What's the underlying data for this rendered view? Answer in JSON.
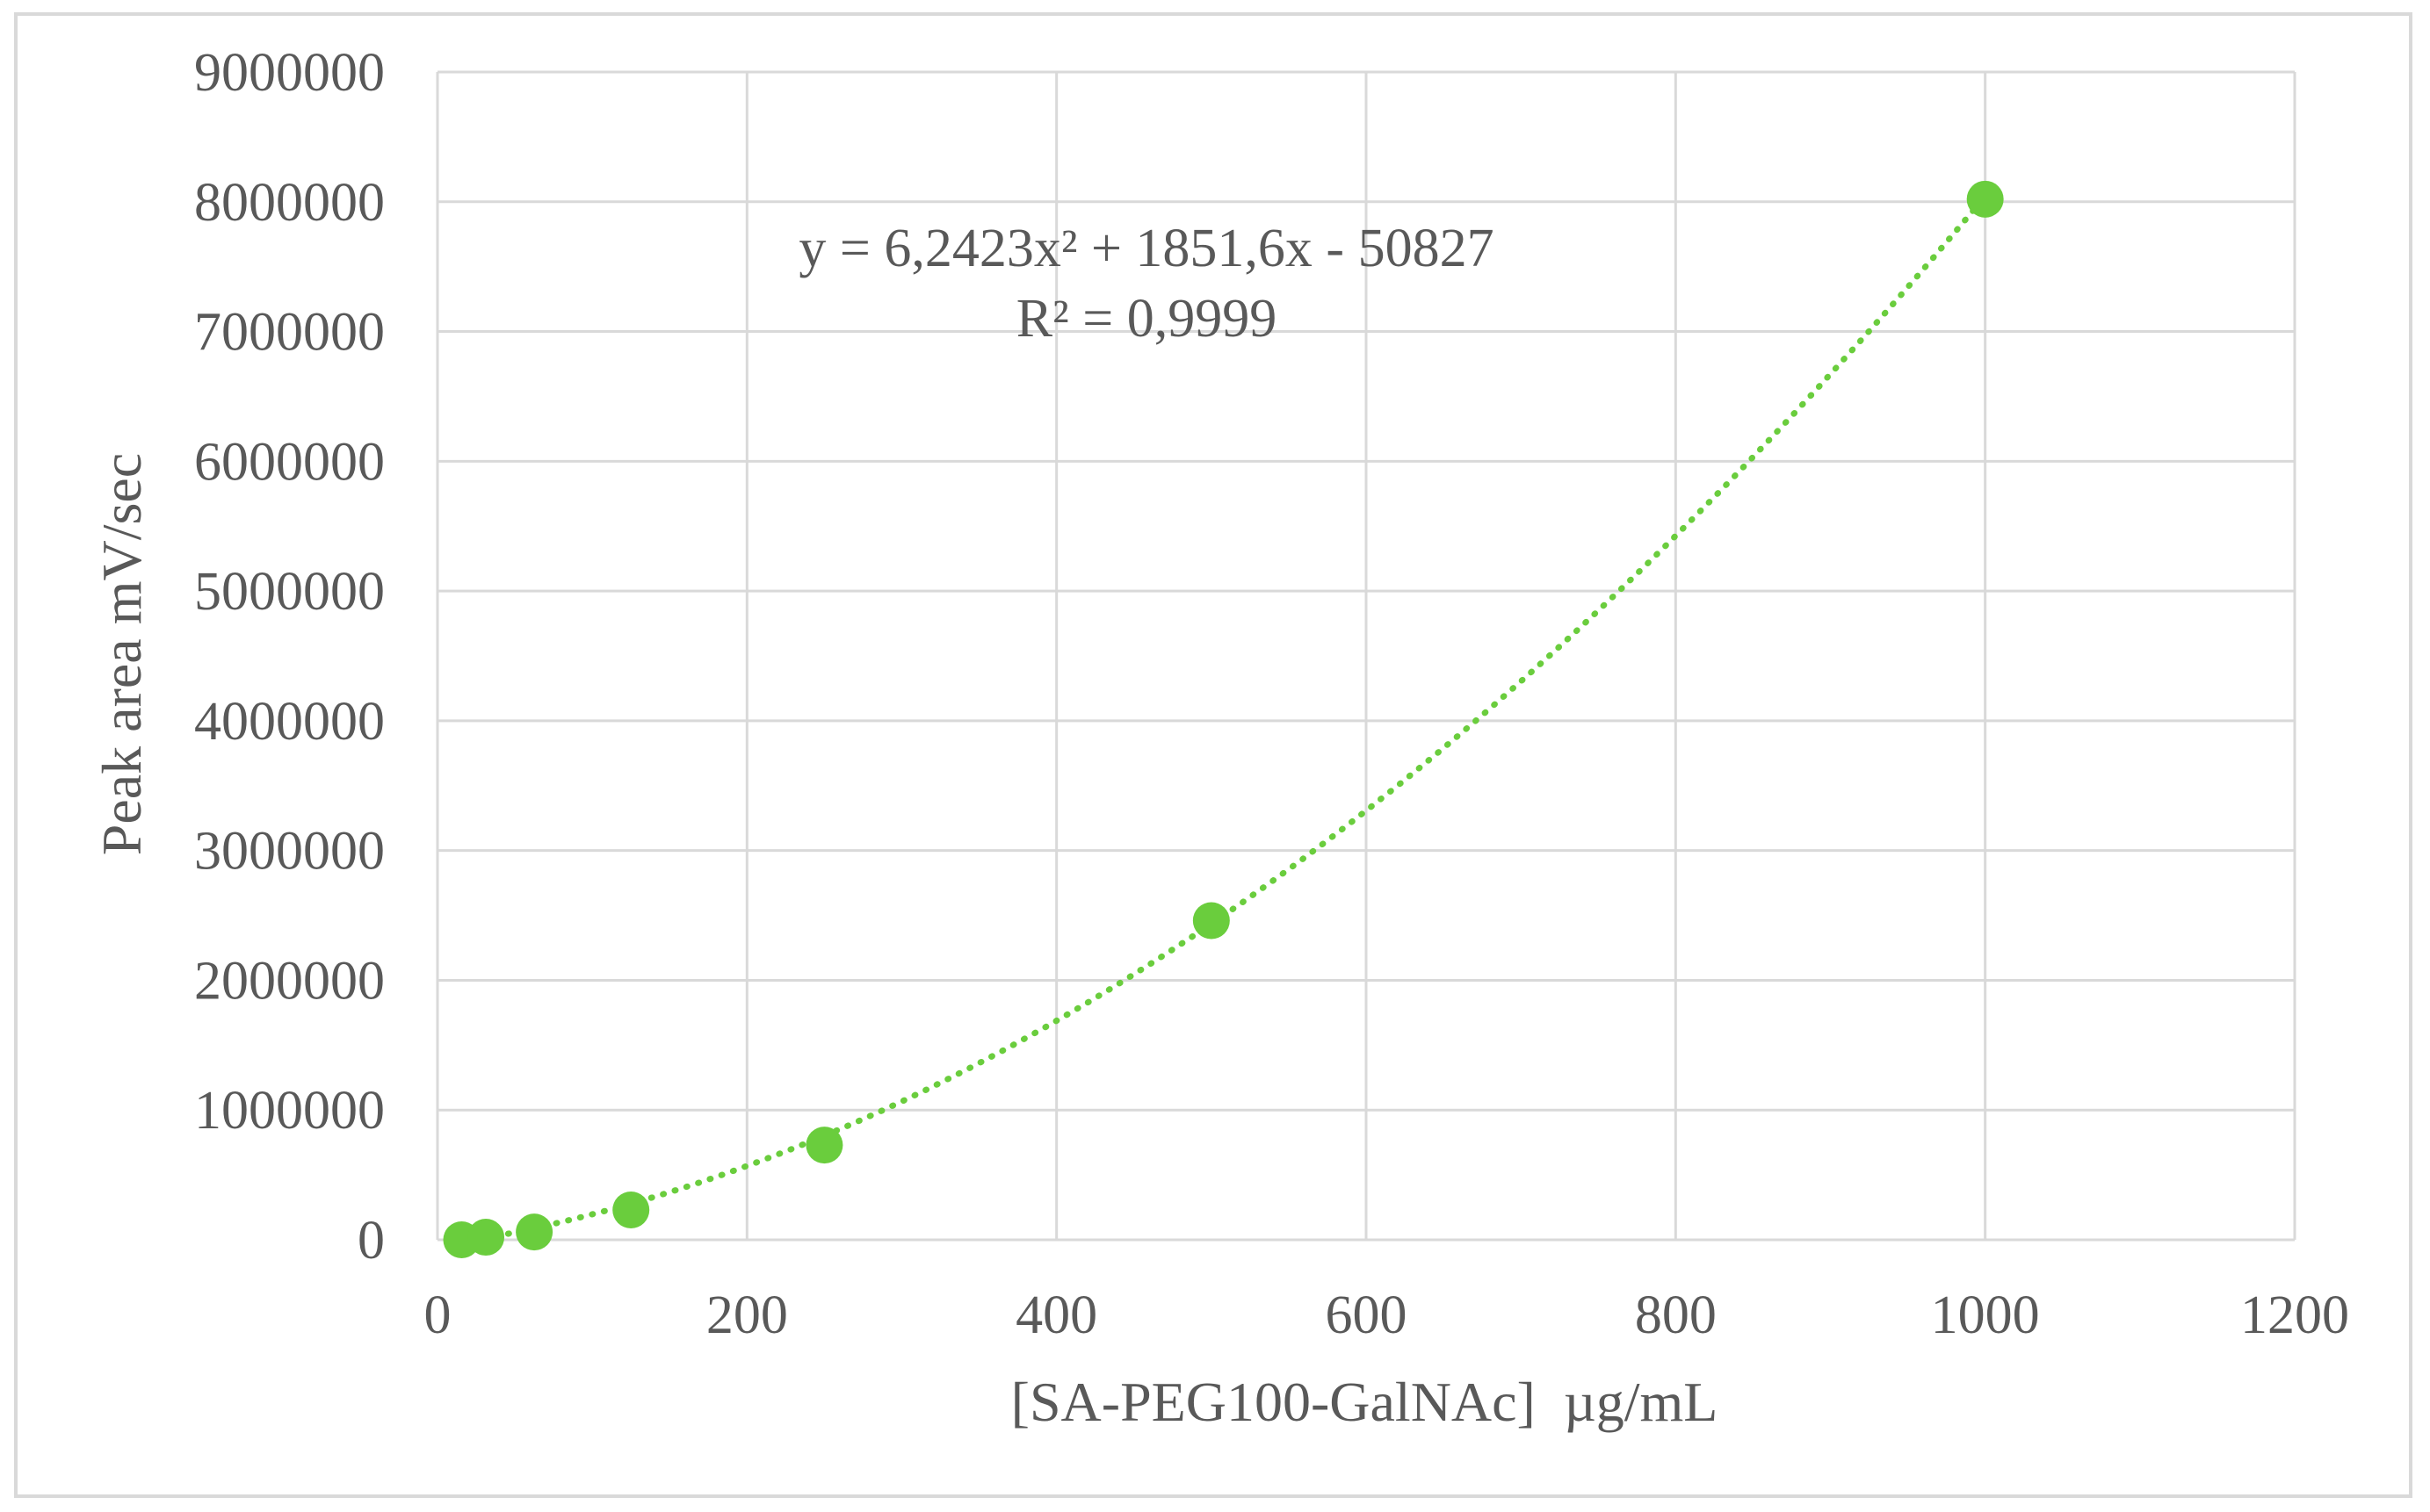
{
  "chart_data": {
    "type": "scatter",
    "title": "",
    "xlabel": "[SA-PEG100-GalNAc]  µg/mL",
    "ylabel": "Peak area mV/sec",
    "xlim": [
      0,
      1200
    ],
    "ylim": [
      0,
      9000000
    ],
    "x_ticks": [
      0,
      200,
      400,
      600,
      800,
      1000,
      1200
    ],
    "y_ticks": [
      0,
      1000000,
      2000000,
      3000000,
      4000000,
      5000000,
      6000000,
      7000000,
      8000000,
      9000000
    ],
    "grid": true,
    "series": [
      {
        "x": [
          15.6,
          31.25,
          62.5,
          125,
          250,
          500,
          1000
        ],
        "y": [
          0,
          20000,
          60000,
          230000,
          730000,
          2460000,
          8020000
        ]
      }
    ],
    "trendline": {
      "type": "polynomial",
      "order": 2,
      "coefficients": [
        6.2423,
        1851.6,
        -50827
      ],
      "equation": "y = 6,2423x² + 1851,6x - 50827",
      "r_squared": "R² = 0,9999",
      "style": "dotted"
    },
    "colors": {
      "series": "#6acd3d",
      "grid": "#d9d9d9",
      "text": "#595959",
      "frame": "#d9d9d9"
    }
  }
}
